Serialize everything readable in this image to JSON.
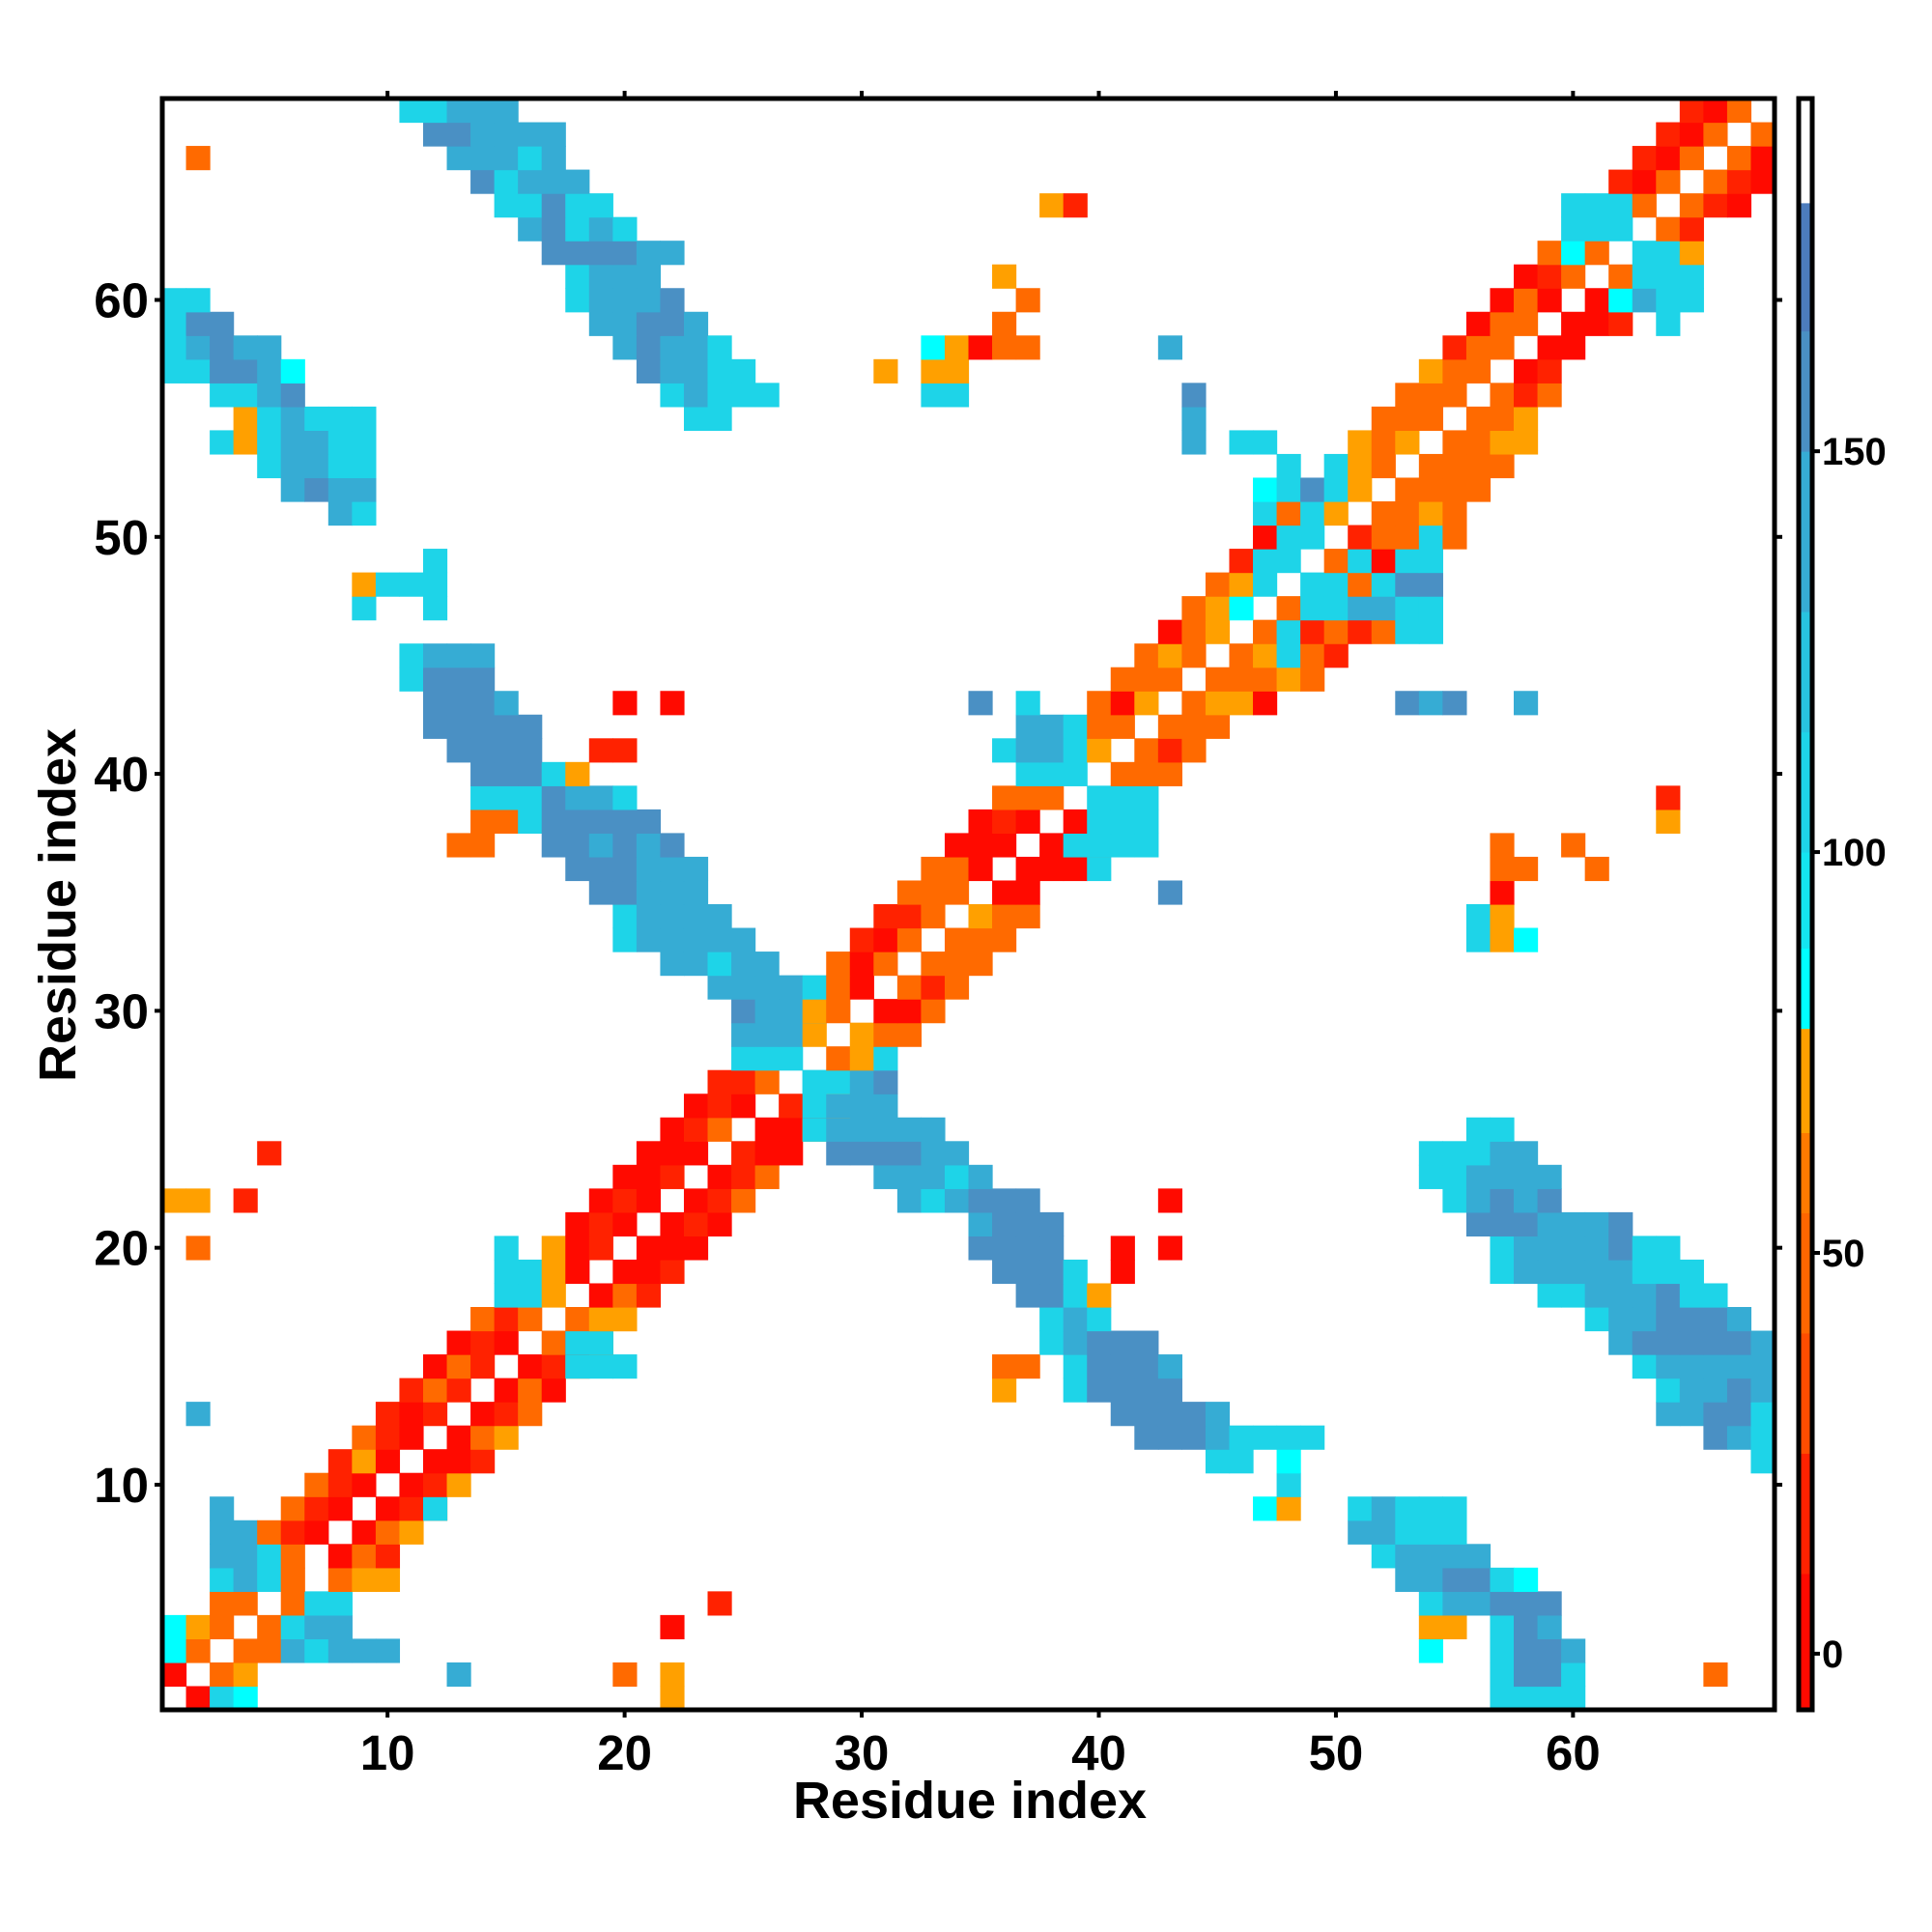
{
  "chart_data": {
    "type": "heatmap",
    "title": "",
    "xlabel": "Residue index",
    "ylabel": "Residue index",
    "xlim": [
      0.5,
      68.5
    ],
    "ylim": [
      0.5,
      68.5
    ],
    "n": 68,
    "x_ticks": [
      10,
      20,
      30,
      40,
      50,
      60
    ],
    "y_ticks": [
      10,
      20,
      30,
      40,
      50,
      60
    ],
    "grid": false,
    "colorbar": {
      "placement": "right",
      "range": [
        -7,
        194
      ],
      "ticks": [
        0,
        50,
        100,
        150
      ],
      "stops": [
        {
          "from": -7,
          "to": 10,
          "color": "#ff0a00"
        },
        {
          "from": 10,
          "to": 25,
          "color": "#ff2200"
        },
        {
          "from": 25,
          "to": 40,
          "color": "#ff4d00"
        },
        {
          "from": 40,
          "to": 55,
          "color": "#ff6600"
        },
        {
          "from": 55,
          "to": 65,
          "color": "#ff7a00"
        },
        {
          "from": 65,
          "to": 78,
          "color": "#ffa000"
        },
        {
          "from": 78,
          "to": 88,
          "color": "#00ffff"
        },
        {
          "from": 88,
          "to": 100,
          "color": "#14e4f0"
        },
        {
          "from": 100,
          "to": 115,
          "color": "#1ed4e8"
        },
        {
          "from": 115,
          "to": 130,
          "color": "#28c4e0"
        },
        {
          "from": 130,
          "to": 150,
          "color": "#36acd4"
        },
        {
          "from": 150,
          "to": 165,
          "color": "#4a90c4"
        },
        {
          "from": 165,
          "to": 181,
          "color": "#4c7cbc"
        },
        {
          "from": 181,
          "to": 194,
          "color": "#ffffff"
        }
      ]
    },
    "value_codes": {
      "r": {
        "value": 2,
        "color": "#ff0a00"
      },
      "R": {
        "value": 20,
        "color": "#ff2200"
      },
      "o": {
        "value": 45,
        "color": "#ff6a00"
      },
      "O": {
        "value": 70,
        "color": "#ffa000"
      },
      "c": {
        "value": 82,
        "color": "#00ffff"
      },
      "k": {
        "value": 105,
        "color": "#1ed4e8"
      },
      "b": {
        "value": 135,
        "color": "#36acd4"
      },
      "B": {
        "value": 160,
        "color": "#4a90c4"
      }
    },
    "rows_note": "rows[j] lists residue-y = j+1; each entry 'startX:codes', '.' = no contact",
    "rows": [
      [
        "2:rkc",
        "22:O",
        "57:kkkk"
      ],
      [
        "1:r.oO",
        "13:b",
        "20:o",
        "22:O",
        "57:kBBk",
        "66:o"
      ],
      [
        "1:co.oobkbbb",
        "54:c",
        "57:kBBb"
      ],
      [
        "1:cOo.okbb",
        "22:r",
        "54:OO",
        "57:kBb"
      ],
      [
        "3:oo.okk",
        "24:R",
        "54:kbbBBB"
      ],
      [
        "3:kbko.oOO",
        "53:bbBBkc"
      ],
      [
        "3:bbk",
        "6:o.roR",
        "52:kbbbb"
      ],
      [
        "3:bb",
        "5:oRr.roO",
        "51:bbkkk"
      ],
      [
        "3:b",
        "6:oRr.rRo",
        "12:k",
        "47:cO",
        "51:kbkkk"
      ],
      [
        "7:oRr.rRO",
        "48:k"
      ],
      [
        "8:ROr.rrR",
        "45:kk",
        "48:c",
        "68:k"
      ],
      [
        "9:oRr.roO",
        "42:BBBbk",
        "47:kkk",
        "66:Bbk"
      ],
      [
        "2:b",
        "10:RrR.rRo",
        "41:BBBBb",
        "64:bbBBk"
      ],
      [
        "11:RoR.ror",
        "36:O",
        "39:kBBBB",
        "64:kbbBb"
      ],
      [
        "12:roR.rRo",
        "18:kkk",
        "36:oo",
        "39:kBBBb",
        "63:kbbbbb"
      ],
      [
        "13:rRr.oRo",
        "18:kk",
        "38:kbBBB",
        "62:bBBBBBb"
      ],
      [
        "14:oRo.ooO",
        "19:OO",
        "38:kbk",
        "61:kbbBBBb"
      ],
      [
        "15:kkO.roR",
        "37:BBkO",
        "59:kkbbbBkk"
      ],
      [
        "15:kkOr.rrR",
        "36:BBBk",
        "41:r",
        "57:kbbbbbkkk"
      ],
      [
        "2:o",
        "15:k",
        "17:OrR.rrr",
        "35:BBBB",
        "41:r",
        "43:r",
        "57:kbbbbBkk"
      ],
      [
        "18:rRr.rRr",
        "35:bBBB",
        "56:BBBbbbB"
      ],
      [
        "1:OO",
        "4:R",
        "19:rRr.rRo",
        "32:bkbBBB",
        "43:r",
        "55:kbBbB"
      ],
      [
        "20:rrR.rRo",
        "31:bbbkb",
        "54:kkbbbb"
      ],
      [
        "5:R",
        "21:rrr.Rrr",
        "29:BBBBbb",
        "54:kkkbb"
      ],
      [
        "22:rRo.rrO",
        "28:kbbbbb",
        "56:kk"
      ],
      [
        "23:rRr.RrO",
        "28:kbbb"
      ],
      [
        "24:RRo.ko",
        "28:kkbB"
      ],
      [
        "25:kkk.oOk"
      ],
      [
        "25:bbbO.Ooo"
      ],
      [
        "25:Bbbb",
        "28:Oo.rro"
      ],
      [
        "24:bbbbk",
        "29:or.oRo"
      ],
      [
        "22:bbkbb",
        "29:oro.ooo"
      ],
      [
        "20:kbbbbb",
        "30:Rro.ooo",
        "56:kOc"
      ],
      [
        "20:kbbbb",
        "31:RRo.Ooo",
        "56:kO"
      ],
      [
        "19:BBbbb",
        "32:ooo.rr",
        "43:B",
        "57:r"
      ],
      [
        "18:BBBbbb",
        "33:oor.rrr",
        "40:k",
        "57:oo",
        "61:o"
      ],
      [
        "13:oo",
        "17:BBbBbB",
        "34:rrr.rro",
        "39:kkkk",
        "57:o",
        "60:o"
      ],
      [
        "14:ook",
        "17:BBBBB",
        "35:rRr.rkkk",
        "64:O"
      ],
      [
        "14:kkkBbbk",
        "36:ooo.kkk",
        "64:R"
      ],
      [
        "14:BBBkO",
        "37:kkk.ooo"
      ],
      [
        "13:BBBB",
        "19:RR",
        "36:kbbkO.oRo"
      ],
      [
        "12:BBBBB",
        "37:bbkoo.ooo"
      ],
      [
        "12:BBBb",
        "20:r",
        "22:r",
        "35:B",
        "37:k",
        "40:orO.oOOr",
        "53:BbB",
        "58:b"
      ],
      [
        "11:kBBB",
        "41:ooo.oooOo"
      ],
      [
        "11:kbbb",
        "42:oOo.oOkoR"
      ],
      [
        "43:roO.o",
        "48:kRoRok",
        "54:k"
      ],
      [
        "9:k",
        "12:k",
        "44:oOc.okkbbkk",
        "54:k"
      ],
      [
        "9:Okkk",
        "45:oOk.kkokBB"
      ],
      [
        "12:k",
        "46:Rkk.okrkk"
      ],
      [
        "47:rkk.Rooko"
      ],
      [
        "8:bk",
        "47:kokO.ooOo"
      ],
      [
        "6:bBbb",
        "47:ckBkO.oooo"
      ],
      [
        "5:kbbkk",
        "48:k",
        "50:kOo.oooo"
      ],
      [
        "3:kOkbbkk",
        "44:b",
        "46:kk",
        "51:OoO.ooOO"
      ],
      [
        "4:Okbkkk",
        "23:kk",
        "44:b",
        "52:ooo.ooO"
      ],
      [
        "3:kkbB",
        "22:kbkkk",
        "33:kk",
        "44:B",
        "53:ooo.oRo"
      ],
      [
        "1:kkBBbc",
        "21:Bbbkk",
        "31:O",
        "33:OO",
        "54:Ooo.rR"
      ],
      [
        "1:kbBbb",
        "20:bBbbk",
        "33:cOroo",
        "43:b",
        "55:Roo.rr"
      ],
      [
        "1:kBB",
        "19:bbBBb",
        "36:o",
        "56:roo.rrR",
        "64:k"
      ],
      [
        "1:kk",
        "18:kbbbB",
        "37:o",
        "57:ror.rcbkk"
      ],
      [
        "18:kbbb",
        "36:O",
        "58:rRo.okkk"
      ],
      [
        "17:BBBBbb",
        "59:oco.kkO"
      ],
      [
        "16:bBkbk",
        "60:kkk.oR"
      ],
      [
        "15:kkBkk",
        "38:OR",
        "60:kkko.oRr"
      ],
      [
        "14:Bkbbb",
        "62:Rro.oRr"
      ],
      [
        "2:o",
        "13:bbbkb",
        "63:Rro.or"
      ],
      [
        "12:BBbbbb",
        "64:Rro.o"
      ],
      [
        "11:kkbbb",
        "65:Rro."
      ]
    ]
  }
}
